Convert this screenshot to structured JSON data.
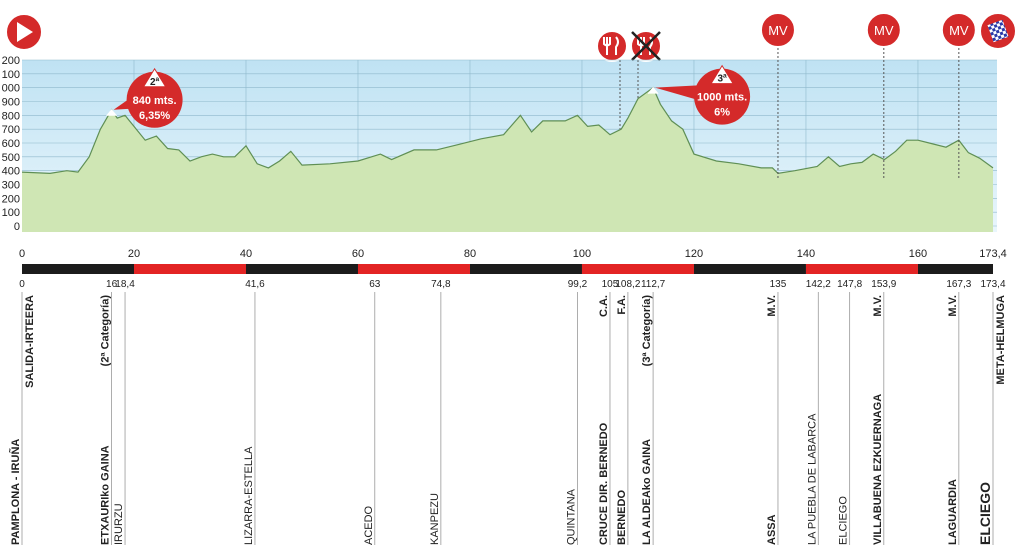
{
  "chart_data": {
    "type": "area",
    "x": [
      0,
      5,
      8,
      10,
      12,
      14,
      16,
      17,
      18.4,
      20,
      22,
      24,
      26,
      28,
      30,
      32,
      34,
      36,
      38,
      40,
      42,
      44,
      46,
      48,
      50,
      55,
      60,
      64,
      66,
      70,
      74,
      78,
      82,
      86,
      89,
      91,
      93,
      95,
      97,
      99.2,
      101,
      103,
      105,
      107,
      108.2,
      110,
      112.7,
      114,
      116,
      118,
      120,
      124,
      128,
      132,
      134,
      135,
      138,
      142,
      144,
      146,
      148,
      150,
      152,
      154,
      156,
      158,
      160,
      162,
      165,
      167.3,
      169,
      171,
      173.4
    ],
    "values": [
      390,
      380,
      400,
      390,
      500,
      700,
      840,
      780,
      800,
      720,
      620,
      650,
      560,
      550,
      470,
      500,
      520,
      500,
      500,
      580,
      450,
      420,
      470,
      540,
      440,
      450,
      470,
      520,
      480,
      550,
      550,
      590,
      630,
      660,
      800,
      680,
      760,
      760,
      760,
      800,
      720,
      730,
      660,
      700,
      780,
      920,
      1000,
      880,
      760,
      700,
      520,
      470,
      450,
      420,
      420,
      380,
      400,
      430,
      500,
      430,
      450,
      460,
      520,
      480,
      540,
      620,
      620,
      600,
      570,
      620,
      530,
      490,
      420
    ],
    "color": "#cfe6b4",
    "line_color": "#5f8f55",
    "xlim": [
      0,
      173.4
    ],
    "xticks": [
      0,
      20,
      40,
      60,
      80,
      100,
      120,
      140,
      160,
      {
        "value": 173.4,
        "label": "173,4"
      }
    ],
    "ylim": [
      0,
      1200
    ],
    "yticks": [
      0,
      100,
      200,
      300,
      400,
      500,
      600,
      700,
      800,
      900,
      {
        "value": 1000,
        "label": "000"
      },
      {
        "value": 1100,
        "label": "100"
      },
      {
        "value": 1200,
        "label": "200"
      }
    ],
    "grid": true,
    "segment_colors": [
      "#1c1c1c",
      "#e32424"
    ],
    "climbs": [
      {
        "km": 16,
        "altitude": 840,
        "category": "2ª",
        "altitude_label": "840 mts.",
        "gradient": "6,35%"
      },
      {
        "km": 112.7,
        "altitude": 1000,
        "category": "3ª",
        "altitude_label": "1000 mts.",
        "gradient": "6%"
      }
    ],
    "markers": [
      {
        "km": 135,
        "label": "MV"
      },
      {
        "km": 153.9,
        "label": "MV"
      },
      {
        "km": 167.3,
        "label": "MV"
      }
    ],
    "waypoints": [
      {
        "km": 0,
        "name": "PAMPLONA - IRUÑA",
        "note": "SALIDA-IRTEERA",
        "bold": true
      },
      {
        "km": 16,
        "name": "ETXAURIko GAINA",
        "note": "(2ª Categoría)",
        "bold": true
      },
      {
        "km": {
          "value": 18.4,
          "label": "18,4"
        },
        "name": "IRURZU",
        "bold": false
      },
      {
        "km": {
          "value": 41.6,
          "label": "41,6"
        },
        "name": "LIZARRA-ESTELLA",
        "bold": false
      },
      {
        "km": 63,
        "name": "ACEDO",
        "bold": false
      },
      {
        "km": {
          "value": 74.8,
          "label": "74,8"
        },
        "name": "KANPEZU",
        "bold": false
      },
      {
        "km": {
          "value": 99.2,
          "label": "99,2"
        },
        "name": "QUINTANA",
        "bold": false
      },
      {
        "km": 105,
        "name": "CRUCE DIR. BERNEDO",
        "note": "C.A.",
        "bold": true
      },
      {
        "km": {
          "value": 108.2,
          "label": "108,2"
        },
        "name": "BERNEDO",
        "note": "F.A.",
        "bold": true
      },
      {
        "km": {
          "value": 112.7,
          "label": "112,7"
        },
        "name": "LA ALDEAko GAINA",
        "note": "(3ª Categoría)",
        "bold": true
      },
      {
        "km": 135,
        "name": "ASSA",
        "note": "M.V.",
        "bold": true
      },
      {
        "km": {
          "value": 142.2,
          "label": "142,2"
        },
        "name": "LA PUEBLA DE LABARCA",
        "bold": false
      },
      {
        "km": {
          "value": 147.8,
          "label": "147,8"
        },
        "name": "ELCIEGO",
        "bold": false
      },
      {
        "km": {
          "value": 153.9,
          "label": "153,9"
        },
        "name": "VILLABUENA EZKUERNAGA",
        "note": "M.V.",
        "bold": true
      },
      {
        "km": {
          "value": 167.3,
          "label": "167,3"
        },
        "name": "LAGUARDIA",
        "note": "M.V.",
        "bold": true
      },
      {
        "km": {
          "value": 173.4,
          "label": "173,4"
        },
        "name": "ELCIEGO",
        "note": "META-HELMUGA",
        "bold": true
      }
    ]
  }
}
